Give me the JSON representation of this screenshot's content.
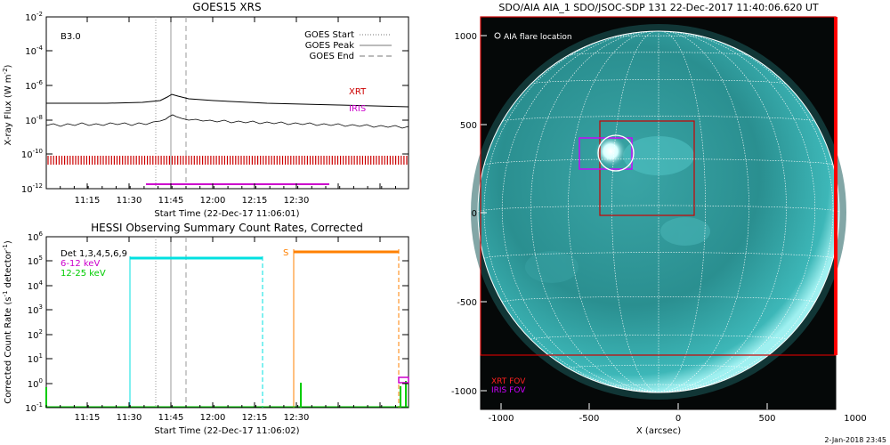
{
  "goes": {
    "title": "GOES15 XRS",
    "class_label": "B3.0",
    "ylabel_main": "X-ray Flux (W m",
    "ylabel_exp": "-2",
    "ylabel_close": ")",
    "xlabel": "Start Time (22-Dec-17 11:06:01)",
    "yticks": [
      "10",
      "10",
      "10",
      "10",
      "10",
      "10"
    ],
    "yexps": [
      "-2",
      "-4",
      "-6",
      "-8",
      "-10",
      "-12"
    ],
    "xticks": [
      "11:15",
      "11:30",
      "11:45",
      "12:00",
      "12:15",
      "12:30"
    ],
    "legend": [
      {
        "label": "GOES Start",
        "style": "dotted"
      },
      {
        "label": "GOES Peak",
        "style": "solid"
      },
      {
        "label": "GOES End",
        "style": "dashed"
      }
    ],
    "xrt_label": "XRT",
    "iris_label": "IRIS",
    "colors": {
      "xrt": "#cc0000",
      "iris": "#cc00cc",
      "curve": "#000000"
    }
  },
  "hessi": {
    "title": "HESSI Observing Summary Count Rates, Corrected",
    "ylabel_main": "Corrected Count Rate (s",
    "ylabel_exp": "-1",
    "ylabel_mid": " detector",
    "ylabel_exp2": "-1",
    "ylabel_close": ")",
    "xlabel": "Start Time (22-Dec-17 11:06:02)",
    "yticks": [
      "10",
      "10",
      "10",
      "10",
      "10",
      "10",
      "10",
      "10"
    ],
    "yexps": [
      "6",
      "5",
      "4",
      "3",
      "2",
      "1",
      "0",
      "-1"
    ],
    "xticks": [
      "11:15",
      "11:30",
      "11:45",
      "12:00",
      "12:15",
      "12:30"
    ],
    "legend": [
      {
        "label": "Det 1,3,4,5,6,9",
        "color": "#000000"
      },
      {
        "label": "6-12 keV",
        "color": "#cc00cc"
      },
      {
        "label": "12-25 keV",
        "color": "#00cc00"
      }
    ],
    "s_marker": "S",
    "colors": {
      "cyan": "#00e0e0",
      "orange": "#ff8000",
      "green": "#00cc00",
      "magenta": "#cc00cc"
    }
  },
  "aia": {
    "title": "SDO/AIA AIA_1 SDO/JSOC-SDP 131 22-Dec-2017 11:40:06.620 UT",
    "legend_flare": "AIA flare location",
    "legend_xrt": "XRT FOV",
    "legend_iris": "IRIS FOV",
    "xlabel": "X (arcsec)",
    "xticks": [
      "-1000",
      "-500",
      "0",
      "500",
      "1000"
    ],
    "yticks": [
      "1000",
      "500",
      "0",
      "-500",
      "-1000"
    ],
    "footer": "2-Jan-2018 23:45",
    "colors": {
      "disk": "#2a8f90",
      "xrt": "#ff0000",
      "iris": "#cc00ff",
      "grid": "#ffffff"
    }
  }
}
